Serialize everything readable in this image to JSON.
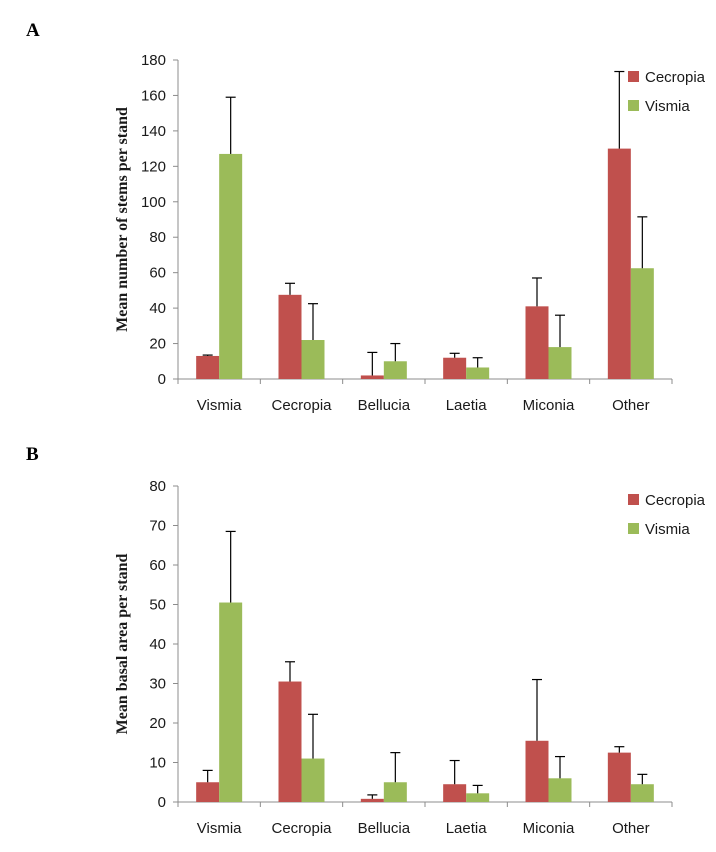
{
  "chart_data": [
    {
      "panel": "A",
      "type": "bar",
      "ylabel": "Mean number of stems per stand",
      "xlabel": "",
      "ylim": [
        0,
        180
      ],
      "yticks": [
        0,
        20,
        40,
        60,
        80,
        100,
        120,
        140,
        160,
        180
      ],
      "categories": [
        "Vismia",
        "Cecropia",
        "Bellucia",
        "Laetia",
        "Miconia",
        "Other"
      ],
      "series": [
        {
          "name": "Cecropia",
          "color": "#c0504d",
          "values": [
            13,
            47.5,
            2,
            12,
            41,
            130
          ],
          "error": [
            0.5,
            6.5,
            13,
            2.5,
            16,
            43.5
          ]
        },
        {
          "name": "Vismia",
          "color": "#9bbb59",
          "values": [
            127,
            22,
            10,
            6.5,
            18,
            62.5
          ],
          "error": [
            32,
            20.5,
            10,
            5.5,
            18,
            29
          ]
        }
      ],
      "legend_position": "top-right",
      "grid": false
    },
    {
      "panel": "B",
      "type": "bar",
      "ylabel": "Mean basal area per stand",
      "xlabel": "",
      "ylim": [
        0,
        80
      ],
      "yticks": [
        0,
        10,
        20,
        30,
        40,
        50,
        60,
        70,
        80
      ],
      "categories": [
        "Vismia",
        "Cecropia",
        "Bellucia",
        "Laetia",
        "Miconia",
        "Other"
      ],
      "series": [
        {
          "name": "Cecropia",
          "color": "#c0504d",
          "values": [
            5,
            30.5,
            0.8,
            4.5,
            15.5,
            12.5
          ],
          "error": [
            3,
            5,
            1,
            6,
            15.5,
            1.5
          ]
        },
        {
          "name": "Vismia",
          "color": "#9bbb59",
          "values": [
            50.5,
            11,
            5,
            2.2,
            6,
            4.5
          ],
          "error": [
            18,
            11.2,
            7.5,
            2,
            5.5,
            2.5
          ]
        }
      ],
      "legend_position": "top-right",
      "grid": false
    }
  ]
}
